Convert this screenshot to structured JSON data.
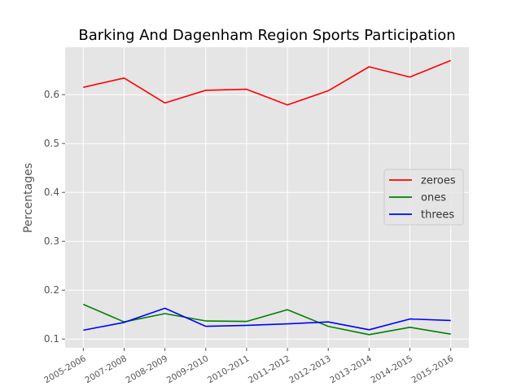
{
  "chart_data": {
    "type": "line",
    "title": "Barking And Dagenham Region Sports Participation",
    "xlabel": "",
    "ylabel": "Percentages",
    "categories": [
      "2005-2006",
      "2007-2008",
      "2008-2009",
      "2009-2010",
      "2010-2011",
      "2011-2012",
      "2012-2013",
      "2013-2014",
      "2014-2015",
      "2015-2016"
    ],
    "series": [
      {
        "name": "zeroes",
        "color": "#ff0000",
        "values": [
          0.615,
          0.634,
          0.583,
          0.609,
          0.611,
          0.579,
          0.608,
          0.657,
          0.636,
          0.67
        ]
      },
      {
        "name": "ones",
        "color": "#008000",
        "values": [
          0.171,
          0.135,
          0.152,
          0.137,
          0.136,
          0.16,
          0.126,
          0.109,
          0.124,
          0.11
        ]
      },
      {
        "name": "threes",
        "color": "#0000ff",
        "values": [
          0.118,
          0.134,
          0.163,
          0.126,
          0.128,
          0.131,
          0.135,
          0.119,
          0.141,
          0.138
        ]
      }
    ],
    "ylim": [
      0.082,
      0.697
    ],
    "yticks": [
      0.1,
      0.2,
      0.3,
      0.4,
      0.5,
      0.6
    ],
    "yticklabels": [
      "0.1",
      "0.2",
      "0.3",
      "0.4",
      "0.5",
      "0.6"
    ],
    "grid": true,
    "legend_position": "center-right",
    "style": "ggplot",
    "background_color": "#e5e5e5",
    "grid_color": "#ffffff"
  }
}
